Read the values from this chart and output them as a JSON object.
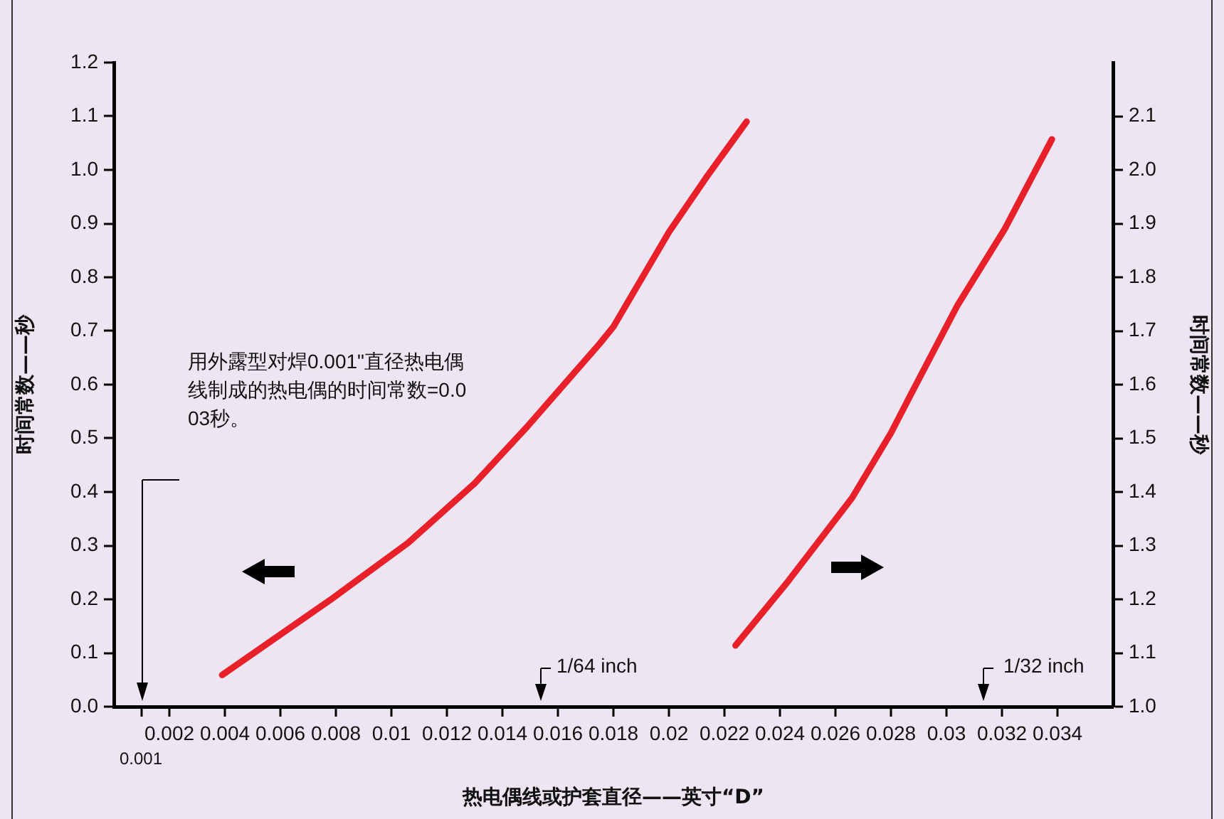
{
  "chart_data": {
    "type": "line",
    "xlabel": "热电偶线或护套直径——英寸“D”",
    "ylabel": "时间常数——秒",
    "y2label": "时间常数——秒",
    "xlim": [
      0,
      0.036
    ],
    "xticks": [
      {
        "value": 0.001,
        "label": null
      },
      0.002,
      0.004,
      0.006,
      0.008,
      0.01,
      0.012,
      0.014,
      0.016,
      0.018,
      0.02,
      0.022,
      0.024,
      0.026,
      0.028,
      0.03,
      0.032,
      0.034
    ],
    "ylim": [
      0,
      1.2
    ],
    "yticks": [
      {
        "value": 0,
        "label": "0.0"
      },
      0.1,
      0.2,
      0.3,
      0.4,
      0.5,
      0.6,
      0.7,
      0.8,
      0.9,
      {
        "value": 1,
        "label": "1.0"
      },
      1.1,
      1.2
    ],
    "y2lim": [
      1,
      2.2
    ],
    "y2ticks": [
      {
        "value": 1,
        "label": "1.0"
      },
      1.1,
      1.2,
      1.3,
      1.4,
      1.5,
      1.6,
      1.7,
      1.8,
      1.9,
      {
        "value": 2,
        "label": "2.0"
      },
      2.1
    ],
    "grid": false,
    "marker": "none",
    "line_style": "solid",
    "series": [
      {
        "color": "#e8202a",
        "x": [
          0.0039,
          0.0078,
          0.0106,
          0.013,
          0.0149,
          0.0175,
          0.018,
          0.02,
          0.0214,
          0.0228
        ],
        "values": [
          0.059,
          0.199,
          0.305,
          0.416,
          0.522,
          0.676,
          0.708,
          0.884,
          0.99,
          1.09
        ]
      },
      {
        "color": "#e8202a",
        "axis": "y2",
        "x": [
          0.0224,
          0.0243,
          0.0266,
          0.028,
          0.0287,
          0.0304,
          0.0321,
          0.0338
        ],
        "values": [
          1.114,
          1.234,
          1.389,
          1.51,
          1.58,
          1.748,
          1.89,
          2.057
        ]
      }
    ],
    "annotations": [
      "用外露型对焊0.001\"直径热电偶线制成的热电偶的时间常数=0.003秒。",
      "1/64 inch",
      "1/32 inch",
      "0.001"
    ]
  }
}
